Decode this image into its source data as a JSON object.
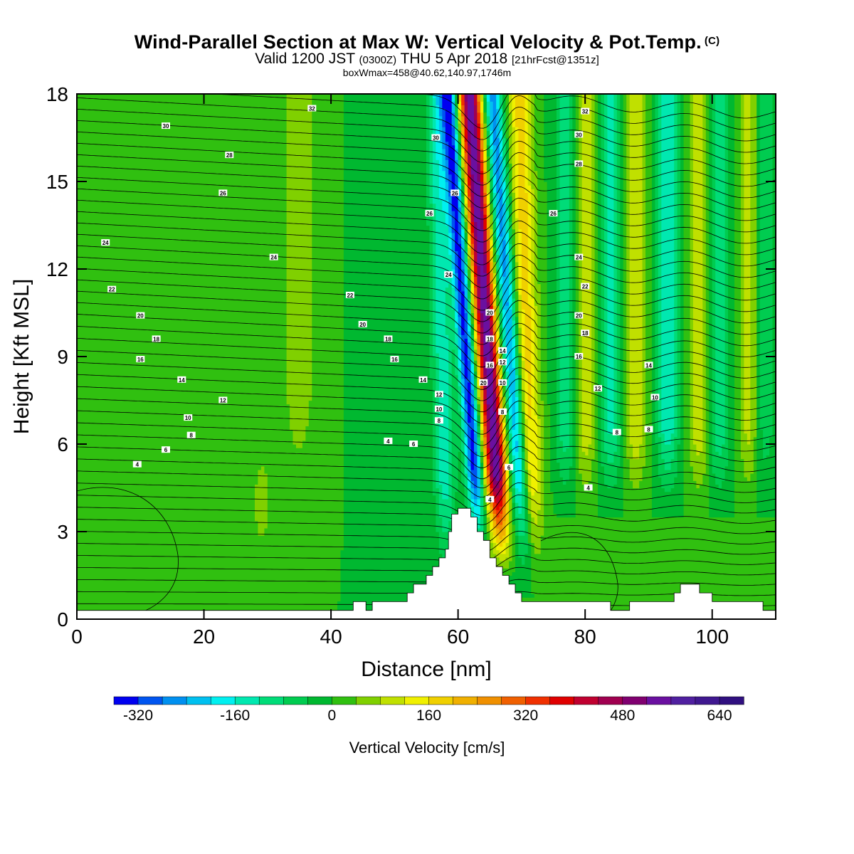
{
  "title": {
    "main": "Wind-Parallel Section at Max W: Vertical Velocity & Pot.Temp.",
    "copyright": "(C)",
    "valid_prefix": "Valid 1200 JST",
    "utc": "(0300Z)",
    "valid_date": "THU 5 Apr 2018",
    "forecast": "[21hrFcst@1351z]",
    "subtitle": "boxWmax=458@40.62,140.97,1746m"
  },
  "chart_data": {
    "type": "heatmap",
    "title": "Wind-Parallel Section at Max W: Vertical Velocity & Pot.Temp.",
    "xlabel": "Distance [nm]",
    "ylabel": "Height [Kft MSL]",
    "xlim": [
      0,
      110
    ],
    "ylim": [
      0,
      18
    ],
    "xticks": [
      "0",
      "20",
      "40",
      "60",
      "80",
      "100"
    ],
    "yticks": [
      "0",
      "3",
      "6",
      "9",
      "12",
      "15",
      "18"
    ],
    "colorbar": {
      "title": "Vertical Velocity [cm/s]",
      "min": -360,
      "max": 680,
      "step": 40,
      "tick_labels": [
        "-320",
        "-160",
        "0",
        "160",
        "320",
        "480",
        "640"
      ],
      "tick_values": [
        -320,
        -160,
        0,
        160,
        320,
        480,
        640
      ],
      "colors": [
        "#0000f0",
        "#0055f0",
        "#0090f0",
        "#00c0f0",
        "#00f0f0",
        "#00e8b0",
        "#00dc78",
        "#00cc50",
        "#00b830",
        "#30c010",
        "#80d000",
        "#c0e000",
        "#f0f000",
        "#f0d000",
        "#f0b000",
        "#f09000",
        "#f06000",
        "#f03000",
        "#e00000",
        "#c00030",
        "#a00050",
        "#800070",
        "#6a10a0",
        "#5020a0",
        "#401890",
        "#301080"
      ]
    },
    "terrain_profile": [
      [
        0,
        0.3
      ],
      [
        43.5,
        0.3
      ],
      [
        43.5,
        0.6
      ],
      [
        45.5,
        0.6
      ],
      [
        45.5,
        0.3
      ],
      [
        46.5,
        0.3
      ],
      [
        46.5,
        0.6
      ],
      [
        52,
        0.6
      ],
      [
        52,
        0.9
      ],
      [
        53,
        0.9
      ],
      [
        53,
        1.2
      ],
      [
        55,
        1.2
      ],
      [
        55,
        1.5
      ],
      [
        56,
        1.5
      ],
      [
        56,
        1.8
      ],
      [
        57,
        1.8
      ],
      [
        57,
        2.1
      ],
      [
        58,
        2.1
      ],
      [
        58,
        2.4
      ],
      [
        58.5,
        2.4
      ],
      [
        58.5,
        3.0
      ],
      [
        59,
        3.0
      ],
      [
        59,
        3.6
      ],
      [
        60,
        3.6
      ],
      [
        60,
        3.8
      ],
      [
        62,
        3.8
      ],
      [
        62,
        3.5
      ],
      [
        63,
        3.5
      ],
      [
        63,
        3.0
      ],
      [
        64,
        3.0
      ],
      [
        64,
        2.7
      ],
      [
        65,
        2.7
      ],
      [
        65,
        2.1
      ],
      [
        66,
        2.1
      ],
      [
        66,
        1.8
      ],
      [
        67,
        1.8
      ],
      [
        67,
        1.5
      ],
      [
        68,
        1.5
      ],
      [
        68,
        1.2
      ],
      [
        69,
        1.2
      ],
      [
        69,
        0.9
      ],
      [
        70,
        0.9
      ],
      [
        70,
        0.6
      ],
      [
        84,
        0.6
      ],
      [
        84,
        0.3
      ],
      [
        87,
        0.3
      ],
      [
        87,
        0.6
      ],
      [
        94,
        0.6
      ],
      [
        94,
        0.9
      ],
      [
        95,
        0.9
      ],
      [
        95,
        1.2
      ],
      [
        98,
        1.2
      ],
      [
        98,
        0.9
      ],
      [
        100,
        0.9
      ],
      [
        100,
        0.6
      ],
      [
        108,
        0.6
      ],
      [
        108,
        0.3
      ],
      [
        110,
        0.3
      ]
    ],
    "theta_contour_labels": [
      {
        "text": "32",
        "x": 37,
        "y": 17.5
      },
      {
        "text": "30",
        "x": 14,
        "y": 16.9
      },
      {
        "text": "30",
        "x": 56.5,
        "y": 16.5
      },
      {
        "text": "30",
        "x": 79,
        "y": 16.6
      },
      {
        "text": "32",
        "x": 80,
        "y": 17.4
      },
      {
        "text": "28",
        "x": 24,
        "y": 15.9
      },
      {
        "text": "28",
        "x": 79,
        "y": 15.6
      },
      {
        "text": "26",
        "x": 23,
        "y": 14.6
      },
      {
        "text": "26",
        "x": 59.5,
        "y": 14.6
      },
      {
        "text": "26",
        "x": 55.5,
        "y": 13.9
      },
      {
        "text": "26",
        "x": 75,
        "y": 13.9
      },
      {
        "text": "24",
        "x": 4.5,
        "y": 12.9
      },
      {
        "text": "24",
        "x": 31,
        "y": 12.4
      },
      {
        "text": "24",
        "x": 58.5,
        "y": 11.8
      },
      {
        "text": "24",
        "x": 79,
        "y": 12.4
      },
      {
        "text": "22",
        "x": 5.5,
        "y": 11.3
      },
      {
        "text": "22",
        "x": 43,
        "y": 11.1
      },
      {
        "text": "22",
        "x": 80,
        "y": 11.4
      },
      {
        "text": "20",
        "x": 10,
        "y": 10.4
      },
      {
        "text": "20",
        "x": 45,
        "y": 10.1
      },
      {
        "text": "20",
        "x": 65,
        "y": 10.5
      },
      {
        "text": "20",
        "x": 79,
        "y": 10.4
      },
      {
        "text": "18",
        "x": 12.5,
        "y": 9.6
      },
      {
        "text": "18",
        "x": 49,
        "y": 9.6
      },
      {
        "text": "18",
        "x": 65,
        "y": 9.6
      },
      {
        "text": "18",
        "x": 80,
        "y": 9.8
      },
      {
        "text": "16",
        "x": 10,
        "y": 8.9
      },
      {
        "text": "16",
        "x": 50,
        "y": 8.9
      },
      {
        "text": "16",
        "x": 79,
        "y": 9.0
      },
      {
        "text": "16",
        "x": 65,
        "y": 8.7
      },
      {
        "text": "14",
        "x": 16.5,
        "y": 8.2
      },
      {
        "text": "14",
        "x": 54.5,
        "y": 8.2
      },
      {
        "text": "14",
        "x": 67,
        "y": 9.2
      },
      {
        "text": "14",
        "x": 90,
        "y": 8.7
      },
      {
        "text": "12",
        "x": 23,
        "y": 7.5
      },
      {
        "text": "12",
        "x": 57,
        "y": 7.7
      },
      {
        "text": "12",
        "x": 67,
        "y": 8.8
      },
      {
        "text": "12",
        "x": 82,
        "y": 7.9
      },
      {
        "text": "10",
        "x": 17.5,
        "y": 6.9
      },
      {
        "text": "10",
        "x": 57,
        "y": 7.2
      },
      {
        "text": "10",
        "x": 67,
        "y": 8.1
      },
      {
        "text": "10",
        "x": 91,
        "y": 7.6
      },
      {
        "text": "20",
        "x": 64,
        "y": 8.1
      },
      {
        "text": "8",
        "x": 18,
        "y": 6.3
      },
      {
        "text": "8",
        "x": 57,
        "y": 6.8
      },
      {
        "text": "8",
        "x": 67,
        "y": 7.1
      },
      {
        "text": "8",
        "x": 85,
        "y": 6.4
      },
      {
        "text": "8",
        "x": 90,
        "y": 6.5
      },
      {
        "text": "6",
        "x": 14,
        "y": 5.8
      },
      {
        "text": "6",
        "x": 53,
        "y": 6.0
      },
      {
        "text": "6",
        "x": 68,
        "y": 5.2
      },
      {
        "text": "4",
        "x": 9.5,
        "y": 5.3
      },
      {
        "text": "4",
        "x": 49,
        "y": 6.1
      },
      {
        "text": "4",
        "x": 65,
        "y": 4.1
      },
      {
        "text": "4",
        "x": 80.5,
        "y": 4.5
      }
    ]
  }
}
